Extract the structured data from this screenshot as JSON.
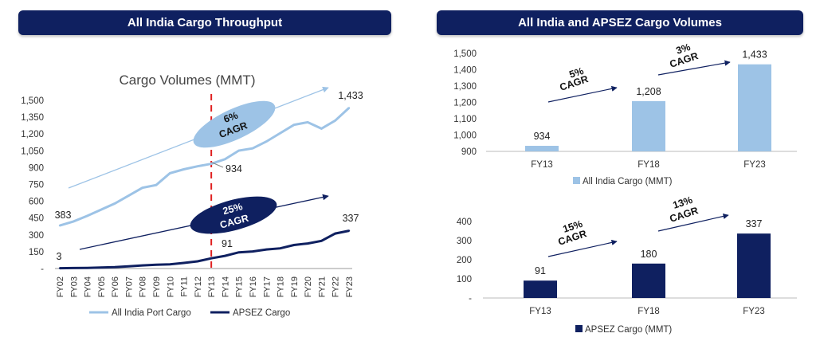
{
  "headers": {
    "left": "All India Cargo Throughput",
    "right": "All India and APSEZ Cargo Volumes"
  },
  "colors": {
    "banner": "#0f2060",
    "light_series": "#9dc3e6",
    "dark_series": "#0f2060",
    "divider": "#e02020"
  },
  "chart_data": [
    {
      "type": "line",
      "title": "Cargo Volumes (MMT)",
      "x": [
        "FY02",
        "FY03",
        "FY04",
        "FY05",
        "FY06",
        "FY07",
        "FY08",
        "FY09",
        "FY10",
        "FY11",
        "FY12",
        "FY13",
        "FY14",
        "FY15",
        "FY16",
        "FY17",
        "FY18",
        "FY19",
        "FY20",
        "FY21",
        "FY22",
        "FY23"
      ],
      "ylim": [
        0,
        1500
      ],
      "yticks": [
        "-",
        "150",
        "300",
        "450",
        "600",
        "750",
        "900",
        "1,050",
        "1,200",
        "1,350",
        "1,500"
      ],
      "series": [
        {
          "name": "All India Port Cargo",
          "color": "#9dc3e6",
          "values": [
            383,
            420,
            470,
            525,
            580,
            650,
            720,
            745,
            850,
            885,
            912,
            934,
            975,
            1052,
            1072,
            1133,
            1208,
            1282,
            1305,
            1248,
            1320,
            1433
          ]
        },
        {
          "name": "APSEZ Cargo",
          "color": "#0f2060",
          "values": [
            3,
            4,
            6,
            9,
            13,
            20,
            28,
            34,
            38,
            50,
            64,
            91,
            113,
            144,
            152,
            170,
            180,
            210,
            223,
            247,
            312,
            337
          ]
        }
      ],
      "data_labels": {
        "ai_start": "383",
        "ai_mid": "934",
        "ai_end": "1,433",
        "ap_start": "3",
        "ap_mid": "91",
        "ap_end": "337"
      },
      "annotations": [
        {
          "pct": "6%",
          "word": "CAGR",
          "style": "light"
        },
        {
          "pct": "25%",
          "word": "CAGR",
          "style": "dark"
        }
      ],
      "divider_at": "FY13"
    },
    {
      "type": "bar",
      "categories": [
        "FY13",
        "FY18",
        "FY23"
      ],
      "values": [
        934,
        1208,
        1433
      ],
      "value_labels": [
        "934",
        "1,208",
        "1,433"
      ],
      "ylim": [
        900,
        1500
      ],
      "yticks": [
        "900",
        "1,000",
        "1,100",
        "1,200",
        "1,300",
        "1,400",
        "1,500"
      ],
      "legend": "All India Cargo (MMT)",
      "color": "#9dc3e6",
      "annotations": [
        {
          "pct": "5%",
          "word": "CAGR"
        },
        {
          "pct": "3%",
          "word": "CAGR"
        }
      ]
    },
    {
      "type": "bar",
      "categories": [
        "FY13",
        "FY18",
        "FY23"
      ],
      "values": [
        91,
        180,
        337
      ],
      "value_labels": [
        "91",
        "180",
        "337"
      ],
      "ylim": [
        0,
        400
      ],
      "yticks": [
        "-",
        "100",
        "200",
        "300",
        "400"
      ],
      "legend": "APSEZ Cargo (MMT)",
      "color": "#0f2060",
      "annotations": [
        {
          "pct": "15%",
          "word": "CAGR"
        },
        {
          "pct": "13%",
          "word": "CAGR"
        }
      ]
    }
  ]
}
